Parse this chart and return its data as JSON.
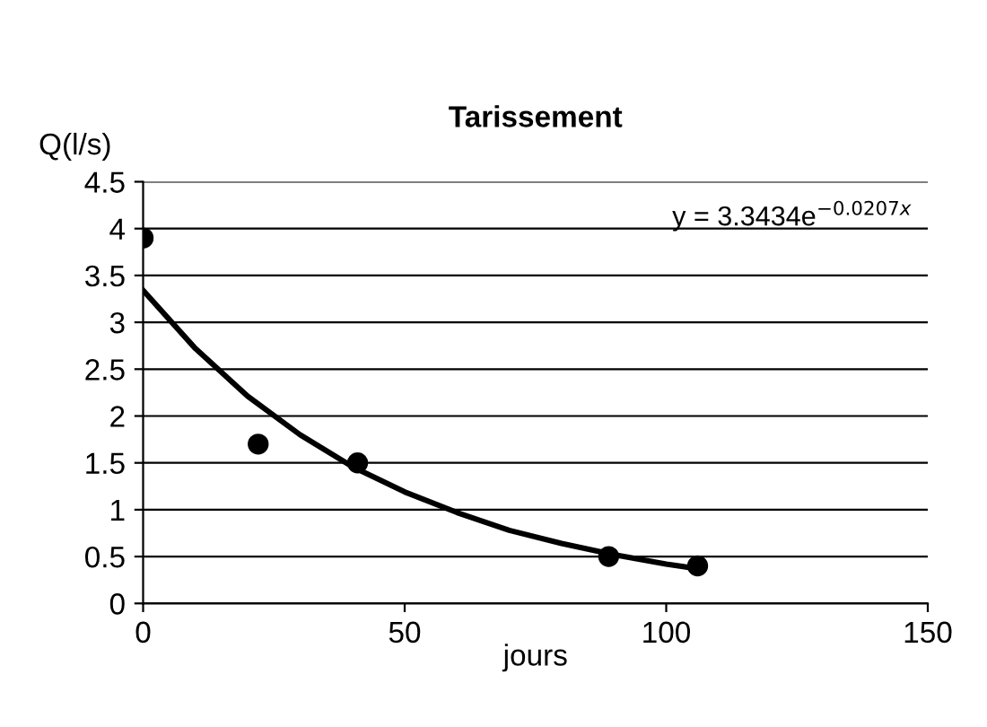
{
  "chart_data": {
    "type": "scatter",
    "title": "Tarissement",
    "xlabel": "jours",
    "ylabel": "Q(l/s)",
    "annotations": [
      "y = 3.3434e$^{−0.0207x}$"
    ],
    "series": [
      {
        "color": "#000000",
        "marker": "circle",
        "x": [
          0,
          22,
          41,
          89,
          106
        ],
        "values": [
          3.9,
          1.7,
          1.5,
          0.5,
          0.4
        ]
      },
      {
        "type": "line",
        "color": "#000000",
        "marker": "none",
        "x": [
          0,
          10,
          20,
          30,
          40,
          50,
          60,
          70,
          80,
          90,
          100,
          106
        ],
        "values": [
          3.34,
          2.72,
          2.21,
          1.8,
          1.46,
          1.19,
          0.97,
          0.78,
          0.64,
          0.52,
          0.42,
          0.37
        ]
      }
    ],
    "xlim": [
      0,
      150
    ],
    "xticks": [
      0,
      50,
      100,
      150
    ],
    "ylim": [
      0,
      4.5
    ],
    "yticks": [
      0,
      0.5,
      1,
      1.5,
      2,
      2.5,
      3,
      3.5,
      4,
      4.5
    ],
    "grid": "y",
    "legend": false
  }
}
